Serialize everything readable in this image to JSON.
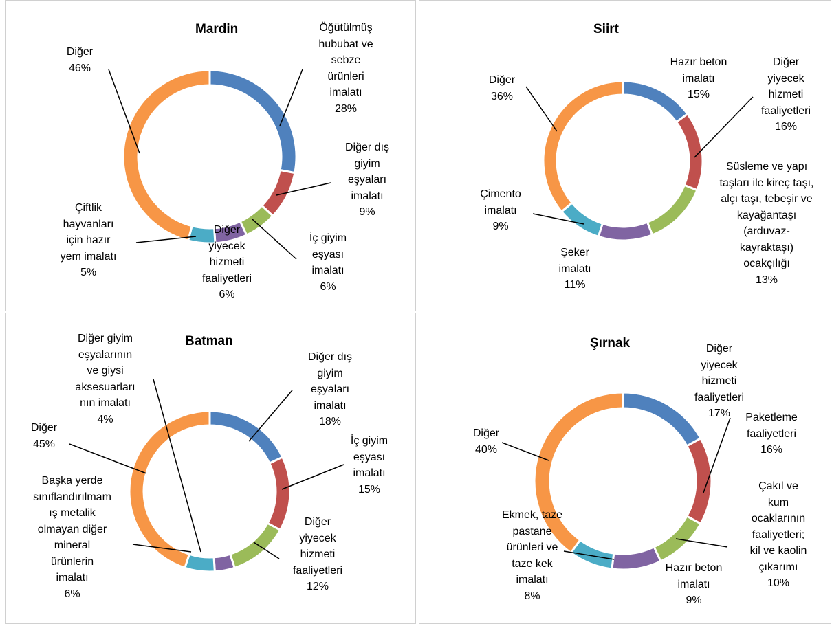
{
  "colors": {
    "blue": "#4F81BD",
    "red": "#C0504D",
    "green": "#9BBB59",
    "purple": "#8064A2",
    "teal": "#4BACC6",
    "orange": "#F79646"
  },
  "chart_data": [
    {
      "type": "pie",
      "title": "Mardin",
      "categories": [
        "Öğütülmüş hububat ve sebze ürünleri imalatı",
        "Diğer dış giyim eşyaları imalatı",
        "İç giyim eşyası imalatı",
        "Diğer yiyecek hizmeti faaliyetleri",
        "Çiftlik hayvanları için hazır yem imalatı",
        "Diğer"
      ],
      "values": [
        28,
        9,
        6,
        6,
        5,
        46
      ],
      "labels": [
        {
          "text": "Öğütülmüş\nhububat ve\nsebze\nürünleri\nimalatı",
          "pct": "28%"
        },
        {
          "text": "Diğer dış\ngiyim\neşyaları\nimalatı",
          "pct": "9%"
        },
        {
          "text": "İç giyim\neşyası\nimalatı",
          "pct": "6%"
        },
        {
          "text": "Diğer\nyiyecek\nhizmeti\nfaaliyetleri",
          "pct": "6%"
        },
        {
          "text": "Çiftlik\nhayvanları\niçin hazır\nyem imalatı",
          "pct": "5%"
        },
        {
          "text": "Diğer",
          "pct": "46%"
        }
      ]
    },
    {
      "type": "pie",
      "title": "Siirt",
      "categories": [
        "Hazır beton imalatı",
        "Diğer yiyecek hizmeti faaliyetleri",
        "Süsleme ve yapı taşları ile kireç taşı, alçı taşı, tebeşir ve kayağantaşı (arduvaz-kayraktaşı) ocakçılığı",
        "Şeker imalatı",
        "Çimento imalatı",
        "Diğer"
      ],
      "values": [
        15,
        16,
        13,
        11,
        9,
        36
      ],
      "labels": [
        {
          "text": "Hazır beton\nimalatı",
          "pct": "15%"
        },
        {
          "text": "Diğer\nyiyecek\nhizmeti\nfaaliyetleri",
          "pct": "16%"
        },
        {
          "text": "Süsleme ve yapı\ntaşları ile kireç taşı,\nalçı taşı, tebeşir ve\nkayağantaşı\n(arduvaz-\nkayraktaşı)\nocakçılığı",
          "pct": "13%"
        },
        {
          "text": "Şeker\nimalatı",
          "pct": "11%"
        },
        {
          "text": "Çimento\nimalatı",
          "pct": "9%"
        },
        {
          "text": "Diğer",
          "pct": "36%"
        }
      ]
    },
    {
      "type": "pie",
      "title": "Batman",
      "categories": [
        "Diğer dış giyim eşyaları imalatı",
        "İç giyim eşyası imalatı",
        "Diğer yiyecek hizmeti faaliyetleri",
        "Diğer giyim eşyalarının ve giysi aksesuarlarının imalatı",
        "Başka yerde sınıflandırılmamış metalik olmayan diğer mineral ürünlerin imalatı",
        "Diğer"
      ],
      "values": [
        18,
        15,
        12,
        4,
        6,
        45
      ],
      "labels": [
        {
          "text": "Diğer dış\ngiyim\neşyaları\nimalatı",
          "pct": "18%"
        },
        {
          "text": "İç giyim\neşyası\nimalatı",
          "pct": "15%"
        },
        {
          "text": "Diğer\nyiyecek\nhizmeti\nfaaliyetleri",
          "pct": "12%"
        },
        {
          "text": "Diğer giyim\neşyalarının\nve giysi\naksesuarları\nnın imalatı",
          "pct": "4%"
        },
        {
          "text": "Başka yerde\nsınıflandırılmam\nış metalik\nolmayan diğer\nmineral\nürünlerin\nimalatı",
          "pct": "6%"
        },
        {
          "text": "Diğer",
          "pct": "45%"
        }
      ]
    },
    {
      "type": "pie",
      "title": "Şırnak",
      "categories": [
        "Diğer yiyecek hizmeti faaliyetleri",
        "Paketleme faaliyetleri",
        "Çakıl ve kum ocaklarının faaliyetleri; kil ve kaolin çıkarımı",
        "Hazır beton imalatı",
        "Ekmek, taze pastane ürünleri ve taze kek imalatı",
        "Diğer"
      ],
      "values": [
        17,
        16,
        10,
        9,
        8,
        40
      ],
      "labels": [
        {
          "text": "Diğer\nyiyecek\nhizmeti\nfaaliyetleri",
          "pct": "17%"
        },
        {
          "text": "Paketleme\nfaaliyetleri",
          "pct": "16%"
        },
        {
          "text": "Çakıl ve\nkum\nocaklarının\nfaaliyetleri;\nkil ve kaolin\nçıkarımı",
          "pct": "10%"
        },
        {
          "text": "Hazır beton\nimalatı",
          "pct": "9%"
        },
        {
          "text": "Ekmek, taze\npastane\nürünleri ve\ntaze kek\nimalatı",
          "pct": "8%"
        },
        {
          "text": "Diğer",
          "pct": "40%"
        }
      ]
    }
  ]
}
